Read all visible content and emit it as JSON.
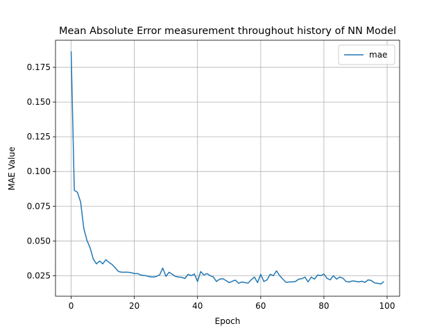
{
  "chart_data": {
    "type": "line",
    "title": "Mean Absolute Error measurement throughout history of NN Model",
    "xlabel": "Epoch",
    "ylabel": "MAE Value",
    "xlim": [
      -4.95,
      103.95
    ],
    "ylim": [
      0.0102,
      0.1945
    ],
    "xticks": [
      0,
      20,
      40,
      60,
      80,
      100
    ],
    "yticks": [
      0.025,
      0.05,
      0.075,
      0.1,
      0.125,
      0.15,
      0.175
    ],
    "ytick_labels": [
      "0.025",
      "0.050",
      "0.075",
      "0.100",
      "0.125",
      "0.150",
      "0.175"
    ],
    "grid": true,
    "legend": "top-right",
    "series": [
      {
        "name": "mae",
        "color": "#1f77b4",
        "x": [
          0,
          1,
          2,
          3,
          4,
          5,
          6,
          7,
          8,
          9,
          10,
          11,
          12,
          13,
          14,
          15,
          16,
          17,
          18,
          19,
          20,
          21,
          22,
          23,
          24,
          25,
          26,
          27,
          28,
          29,
          30,
          31,
          32,
          33,
          34,
          35,
          36,
          37,
          38,
          39,
          40,
          41,
          42,
          43,
          44,
          45,
          46,
          47,
          48,
          49,
          50,
          51,
          52,
          53,
          54,
          55,
          56,
          57,
          58,
          59,
          60,
          61,
          62,
          63,
          64,
          65,
          66,
          67,
          68,
          69,
          70,
          71,
          72,
          73,
          74,
          75,
          76,
          77,
          78,
          79,
          80,
          81,
          82,
          83,
          84,
          85,
          86,
          87,
          88,
          89,
          90,
          91,
          92,
          93,
          94,
          95,
          96,
          97,
          98,
          99
        ],
        "values": [
          0.1865,
          0.0865,
          0.085,
          0.078,
          0.059,
          0.0505,
          0.045,
          0.037,
          0.0335,
          0.0355,
          0.0335,
          0.0365,
          0.0345,
          0.033,
          0.0305,
          0.028,
          0.0275,
          0.0275,
          0.0275,
          0.0272,
          0.0265,
          0.0265,
          0.0255,
          0.0252,
          0.0248,
          0.0242,
          0.024,
          0.0245,
          0.0255,
          0.0305,
          0.0245,
          0.0275,
          0.026,
          0.0245,
          0.024,
          0.0238,
          0.023,
          0.026,
          0.025,
          0.0262,
          0.0208,
          0.028,
          0.0255,
          0.0265,
          0.025,
          0.024,
          0.0208,
          0.0225,
          0.0228,
          0.0215,
          0.02,
          0.021,
          0.0218,
          0.0195,
          0.0205,
          0.02,
          0.0197,
          0.022,
          0.024,
          0.02,
          0.026,
          0.0208,
          0.022,
          0.026,
          0.025,
          0.0285,
          0.025,
          0.0225,
          0.0202,
          0.0205,
          0.0205,
          0.0208,
          0.0225,
          0.0228,
          0.024,
          0.0205,
          0.024,
          0.0225,
          0.0255,
          0.025,
          0.0262,
          0.023,
          0.022,
          0.025,
          0.0225,
          0.024,
          0.0232,
          0.0208,
          0.0205,
          0.0212,
          0.021,
          0.0205,
          0.021,
          0.0202,
          0.022,
          0.0215,
          0.0198,
          0.0195,
          0.019,
          0.0208
        ]
      }
    ]
  }
}
